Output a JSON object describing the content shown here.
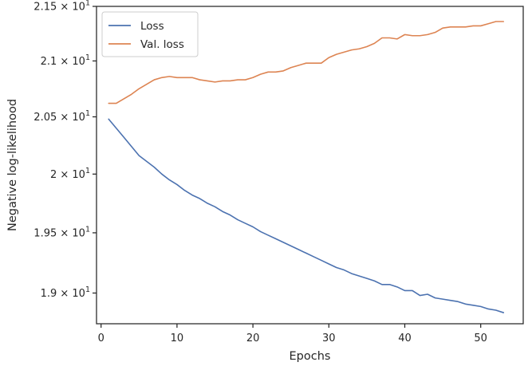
{
  "chart_data": {
    "type": "line",
    "title": "",
    "xlabel": "Epochs",
    "ylabel": "Negative log-likelihood",
    "xlim": [
      -0.6,
      55.6
    ],
    "ylim": [
      18.75,
      21.5
    ],
    "y_scale": "log",
    "grid": false,
    "legend_position": "top-left",
    "x_ticks": [
      0,
      10,
      20,
      30,
      40,
      50
    ],
    "y_ticks": [
      {
        "value": 19.0,
        "mantissa": "1.9"
      },
      {
        "value": 19.5,
        "mantissa": "1.95"
      },
      {
        "value": 20.0,
        "mantissa": "2"
      },
      {
        "value": 20.5,
        "mantissa": "2.05"
      },
      {
        "value": 21.0,
        "mantissa": "2.1"
      },
      {
        "value": 21.5,
        "mantissa": "2.15"
      }
    ],
    "y_tick_suffix": "× 10",
    "y_tick_exponent": "1",
    "x": [
      1,
      2,
      3,
      4,
      5,
      6,
      7,
      8,
      9,
      10,
      11,
      12,
      13,
      14,
      15,
      16,
      17,
      18,
      19,
      20,
      21,
      22,
      23,
      24,
      25,
      26,
      27,
      28,
      29,
      30,
      31,
      32,
      33,
      34,
      35,
      36,
      37,
      38,
      39,
      40,
      41,
      42,
      43,
      44,
      45,
      46,
      47,
      48,
      49,
      50,
      51,
      52,
      53
    ],
    "series": [
      {
        "name": "Loss",
        "color": "#4c72b0",
        "values": [
          20.48,
          20.4,
          20.32,
          20.24,
          20.16,
          20.11,
          20.06,
          20.0,
          19.95,
          19.91,
          19.86,
          19.82,
          19.79,
          19.75,
          19.72,
          19.68,
          19.65,
          19.61,
          19.58,
          19.55,
          19.51,
          19.48,
          19.45,
          19.42,
          19.39,
          19.36,
          19.33,
          19.3,
          19.27,
          19.24,
          19.21,
          19.19,
          19.16,
          19.14,
          19.12,
          19.1,
          19.07,
          19.07,
          19.05,
          19.02,
          19.02,
          18.98,
          18.99,
          18.96,
          18.95,
          18.94,
          18.93,
          18.91,
          18.9,
          18.89,
          18.87,
          18.86,
          18.84
        ]
      },
      {
        "name": "Val. loss",
        "color": "#dd8452",
        "values": [
          20.62,
          20.62,
          20.66,
          20.7,
          20.75,
          20.79,
          20.83,
          20.85,
          20.86,
          20.85,
          20.85,
          20.85,
          20.83,
          20.82,
          20.81,
          20.82,
          20.82,
          20.83,
          20.83,
          20.85,
          20.88,
          20.9,
          20.9,
          20.91,
          20.94,
          20.96,
          20.98,
          20.98,
          20.98,
          21.03,
          21.06,
          21.08,
          21.1,
          21.11,
          21.13,
          21.16,
          21.21,
          21.21,
          21.2,
          21.24,
          21.23,
          21.23,
          21.24,
          21.26,
          21.3,
          21.31,
          21.31,
          21.31,
          21.32,
          21.32,
          21.34,
          21.36,
          21.36
        ]
      }
    ]
  }
}
